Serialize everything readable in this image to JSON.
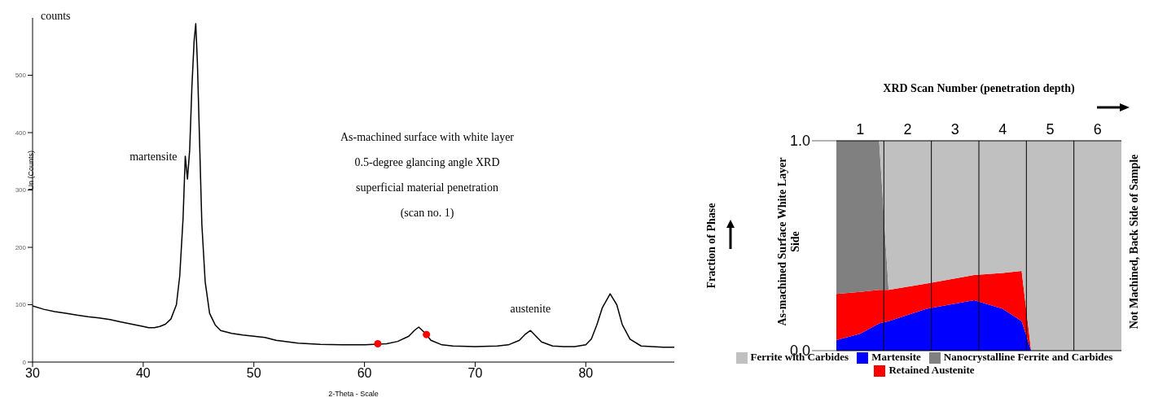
{
  "chart_data": [
    {
      "type": "line",
      "xlabel": "2-Theta - Scale",
      "ylabel": "Un (Counts)",
      "xlim": [
        30,
        88
      ],
      "xticks": [
        30,
        40,
        50,
        60,
        70,
        80
      ],
      "ylim": [
        0,
        600
      ],
      "yticks": [
        0,
        100,
        200,
        300,
        400,
        500
      ],
      "annotations": [
        "counts",
        "As-machined surface with white layer",
        "0.5-degree glancing angle XRD",
        "superficial material penetration",
        "(scan no. 1)",
        {
          "text": "martensite",
          "x": 43.8,
          "y": 359
        },
        {
          "text": "austenite",
          "x": 75,
          "y": 55
        }
      ],
      "series": [
        {
          "type": "line",
          "color": "#000000",
          "x": [
            30,
            31,
            32,
            33,
            34,
            35,
            36,
            37,
            38,
            39,
            40,
            40.5,
            41,
            41.5,
            42,
            42.5,
            43,
            43.3,
            43.6,
            43.8,
            44.0,
            44.2,
            44.4,
            44.6,
            44.75,
            44.9,
            45.1,
            45.3,
            45.6,
            46,
            46.5,
            47,
            48,
            49,
            50,
            51,
            52,
            54,
            56,
            58,
            60,
            62,
            63,
            64,
            64.5,
            64.9,
            65.5,
            66,
            67,
            68,
            70,
            72,
            73,
            74,
            74.5,
            75,
            75.5,
            76,
            77,
            78,
            79,
            80,
            80.5,
            81,
            81.5,
            82.2,
            82.8,
            83.3,
            84,
            85,
            86,
            87,
            88
          ],
          "values": [
            98,
            92,
            88,
            85,
            82,
            79,
            77,
            74,
            70,
            66,
            62,
            60,
            60,
            62,
            66,
            75,
            100,
            150,
            250,
            359,
            319,
            370,
            480,
            560,
            590,
            520,
            380,
            240,
            140,
            85,
            65,
            55,
            50,
            47,
            45,
            43,
            38,
            33,
            31,
            30,
            30,
            32,
            36,
            45,
            55,
            61,
            50,
            38,
            30,
            28,
            27,
            28,
            30,
            38,
            48,
            55,
            45,
            35,
            28,
            27,
            27,
            30,
            40,
            65,
            95,
            119,
            100,
            65,
            40,
            28,
            27,
            26,
            26
          ]
        },
        {
          "type": "scatter",
          "color": "#ff0000",
          "x": [
            61.2,
            65.6
          ],
          "values": [
            32,
            48
          ]
        }
      ]
    },
    {
      "type": "area",
      "stacked": true,
      "xlabel": "XRD Scan Number (penetration depth)",
      "ylabel": "Fraction of Phase",
      "legend": "bottom",
      "xlim": [
        0.5,
        6.5
      ],
      "xticks": [
        1,
        2,
        3,
        4,
        5,
        6
      ],
      "ylim": [
        0,
        1
      ],
      "yticks": [
        {
          "value": 0,
          "label": "0.0"
        },
        {
          "value": 1,
          "label": "1.0"
        }
      ],
      "annotations": [
        "As-machined Surface White Layer Side",
        "Not Machined, Back Side of Sample"
      ],
      "ref_lines": [
        {
          "axis": "x",
          "value": 1.5,
          "color": "#000000"
        },
        {
          "axis": "x",
          "value": 2.5,
          "color": "#000000"
        },
        {
          "axis": "x",
          "value": 3.5,
          "color": "#000000"
        },
        {
          "axis": "x",
          "value": 4.5,
          "color": "#000000"
        },
        {
          "axis": "x",
          "value": 5.5,
          "color": "#000000"
        }
      ],
      "x": [
        0.5,
        1.0,
        1.4,
        1.6,
        2.4,
        3.4,
        4.0,
        4.4,
        4.6,
        6.5
      ],
      "series": [
        {
          "name": "Martensite",
          "color": "#0000ff",
          "values": [
            0.05,
            0.08,
            0.13,
            0.14,
            0.2,
            0.24,
            0.2,
            0.14,
            0,
            null
          ]
        },
        {
          "name": "Retained Austenite",
          "color": "#ff0000",
          "values": [
            0.22,
            0.2,
            0.16,
            0.15,
            0.12,
            0.12,
            0.17,
            0.24,
            0,
            null
          ]
        },
        {
          "name": "Nanocrystalline Ferrite and Carbides",
          "color": "#808080",
          "values": [
            0.73,
            0.72,
            0.71,
            0,
            null,
            null,
            null,
            null,
            null,
            null
          ]
        },
        {
          "name": "Ferrite with Carbides",
          "color": "#c0c0c0",
          "values": [
            null,
            null,
            0,
            0.71,
            0.68,
            0.64,
            0.63,
            0.62,
            1,
            1
          ]
        }
      ]
    }
  ]
}
